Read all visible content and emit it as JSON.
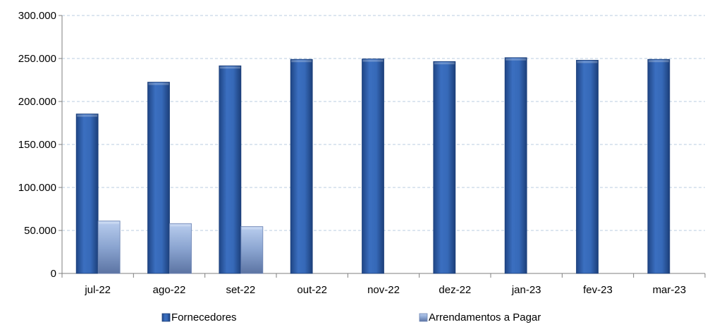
{
  "chart_data": {
    "type": "bar",
    "categories": [
      "jul-22",
      "ago-22",
      "set-22",
      "out-22",
      "nov-22",
      "dez-22",
      "jan-23",
      "fev-23",
      "mar-23"
    ],
    "series": [
      {
        "name": "Fornecedores",
        "values": [
          185500,
          222500,
          241500,
          249000,
          249500,
          246500,
          251000,
          248000,
          249000
        ],
        "color": "#2f5fa8"
      },
      {
        "name": "Arrendamentos a Pagar",
        "values": [
          61000,
          58000,
          54500,
          null,
          null,
          null,
          null,
          null,
          null
        ],
        "color": "#8aa4d0"
      }
    ],
    "y_ticks": [
      "0",
      "50.000",
      "100.000",
      "150.000",
      "200.000",
      "250.000",
      "300.000"
    ],
    "ylim": [
      0,
      300000
    ],
    "y_step": 50000,
    "grid": true,
    "legend_position": "bottom"
  }
}
